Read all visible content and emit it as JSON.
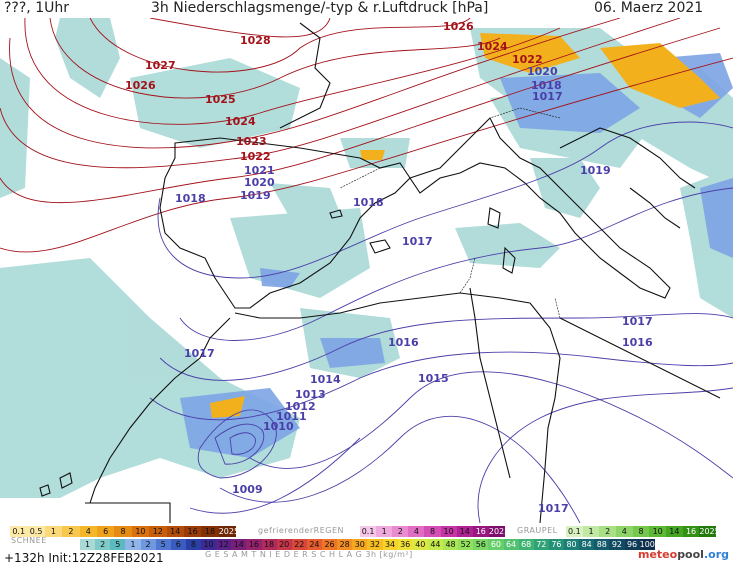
{
  "header": {
    "left": "???, 1Uhr",
    "title": "3h Niederschlagsmenge/-typ & r.Luftdruck [hPa]",
    "date": "06. Maerz 2021"
  },
  "isobars": {
    "red": [
      "1028",
      "1027",
      "1026",
      "1025",
      "1024",
      "1023",
      "1022",
      "1021",
      "1020",
      "1019",
      "1026",
      "1024",
      "1022",
      "1020"
    ],
    "blue": [
      "1018",
      "1018",
      "1017",
      "1019",
      "1018",
      "1017",
      "1017",
      "1016",
      "1015",
      "1014",
      "1013",
      "1012",
      "1011",
      "1010",
      "1009",
      "1017",
      "1016",
      "1017",
      "1017"
    ]
  },
  "legend": {
    "snow_title": "SCHNEE",
    "snow_values": [
      "0.1",
      "0.5",
      "1",
      "2",
      "4",
      "6",
      "8",
      "10",
      "12",
      "14",
      "16",
      "18",
      "2025+"
    ],
    "freezing_title": "gefrierenderREGEN",
    "freezing_values": [
      "0.1",
      "1",
      "2",
      "4",
      "8",
      "10",
      "14",
      "16",
      "2025+"
    ],
    "graupel_title": "GRAUPEL",
    "graupel_values": [
      "0.1",
      "1",
      "2",
      "4",
      "8",
      "10",
      "14",
      "16",
      "2025+"
    ],
    "total_values": [
      "1",
      "2",
      "5",
      "1",
      "2",
      "5",
      "6",
      "8",
      "10",
      "12",
      "14",
      "16",
      "18",
      "20",
      "22",
      "24",
      "26",
      "28",
      "30",
      "32",
      "34",
      "36",
      "40",
      "44",
      "48",
      "52",
      "56",
      "60",
      "64",
      "68",
      "72",
      "76",
      "80",
      "84",
      "88",
      "92",
      "96",
      "100"
    ],
    "total_title": "G E S A M T N I E D E R S C H L A G   3h  [kg/m²]"
  },
  "footer": {
    "run": "+132h  Init:12Z28FEB2021",
    "logo_a": "meteo",
    "logo_b": "pool",
    "logo_c": ".org"
  },
  "colors": {
    "isobar_high": "#a3121b",
    "isobar_low": "#4a3fa8",
    "precip_light": "#a9d9d6",
    "precip_mid": "#7da4e4",
    "snow": "#f2b11c",
    "coast": "#111111"
  }
}
